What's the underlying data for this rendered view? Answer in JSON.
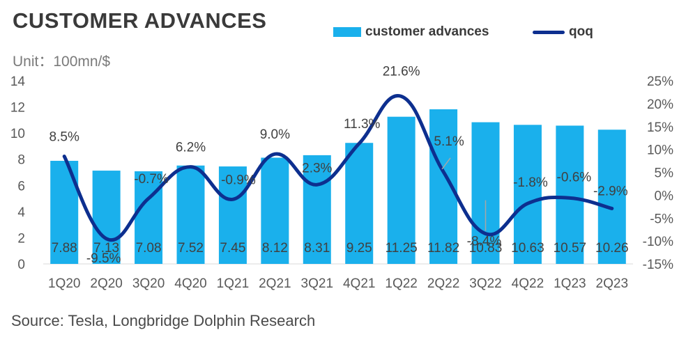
{
  "header": {
    "title": "CUSTOMER ADVANCES",
    "unit": "Unit：100mn/$"
  },
  "legend": {
    "bar_label": "customer advances",
    "line_label": "qoq"
  },
  "footer": {
    "source": "Source: Tesla, Longbridge Dolphin Research"
  },
  "colors": {
    "bar": "#1ab0ec",
    "line": "#0d2f8f",
    "axis_text": "#595959",
    "label_text": "#404040"
  },
  "chart_data": {
    "type": "bar",
    "title": "CUSTOMER ADVANCES",
    "categories": [
      "1Q20",
      "2Q20",
      "3Q20",
      "4Q20",
      "1Q21",
      "2Q21",
      "3Q21",
      "4Q21",
      "1Q22",
      "2Q22",
      "3Q22",
      "4Q22",
      "1Q23",
      "2Q23"
    ],
    "series": [
      {
        "name": "customer advances",
        "type": "bar",
        "axis": "left",
        "values": [
          7.88,
          7.13,
          7.08,
          7.52,
          7.45,
          8.12,
          8.31,
          9.25,
          11.25,
          11.82,
          10.83,
          10.63,
          10.57,
          10.26
        ],
        "labels": [
          "7.88",
          "7.13",
          "7.08",
          "7.52",
          "7.45",
          "8.12",
          "8.31",
          "9.25",
          "11.25",
          "11.82",
          "10.83",
          "10.63",
          "10.57",
          "10.26"
        ]
      },
      {
        "name": "qoq",
        "type": "line",
        "axis": "right",
        "values": [
          8.5,
          -9.5,
          -0.7,
          6.2,
          -0.9,
          9.0,
          2.3,
          11.3,
          21.6,
          5.1,
          -8.4,
          -1.8,
          -0.6,
          -2.9
        ],
        "labels": [
          "8.5%",
          "-9.5%",
          "-0.7%",
          "6.2%",
          "-0.9%",
          "9.0%",
          "2.3%",
          "11.3%",
          "21.6%",
          "5.1%",
          "-8.4%",
          "-1.8%",
          "-0.6%",
          "-2.9%"
        ]
      }
    ],
    "y_left": {
      "range": [
        0,
        14
      ],
      "ticks": [
        "0",
        "2",
        "4",
        "6",
        "8",
        "10",
        "12",
        "14"
      ]
    },
    "y_right": {
      "range": [
        -15,
        25
      ],
      "ticks": [
        "-15%",
        "-10%",
        "-5%",
        "0%",
        "5%",
        "10%",
        "15%",
        "20%",
        "25%"
      ]
    },
    "grid": false,
    "legend_position": "top-right"
  }
}
